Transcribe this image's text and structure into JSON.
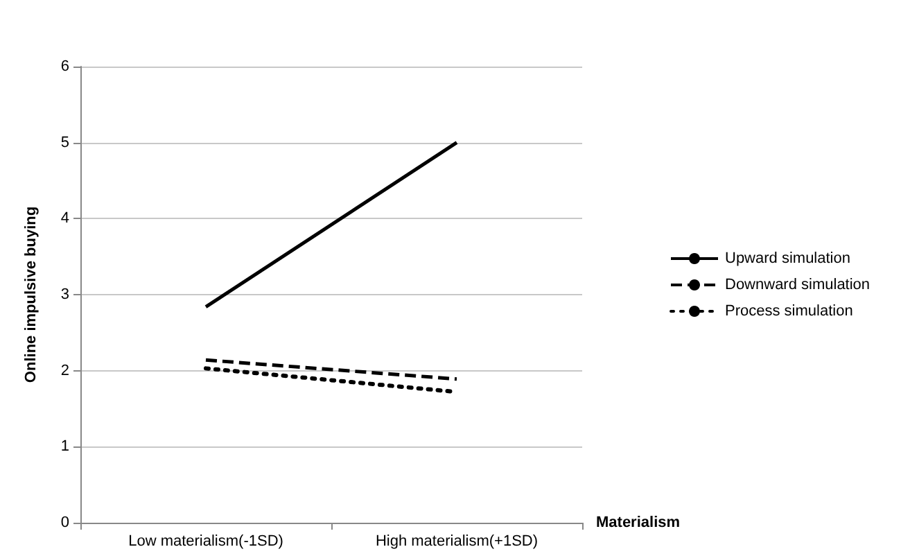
{
  "chart_data": {
    "type": "line",
    "xlabel": "Materialism",
    "ylabel": "Online impulsive buying",
    "categories": [
      "Low materialism(-1SD)",
      "High materialism(+1SD)"
    ],
    "series": [
      {
        "name": "Upward simulation",
        "color": "#000000",
        "values": [
          2.84,
          5.0
        ],
        "line_style": "solid"
      },
      {
        "name": "Downward simulation",
        "color": "#000000",
        "values": [
          2.14,
          1.89
        ],
        "line_style": "dashed"
      },
      {
        "name": "Process simulation",
        "color": "#000000",
        "values": [
          2.03,
          1.72
        ],
        "line_style": "dotted"
      }
    ],
    "ylim": [
      0,
      6
    ],
    "yticks": [
      0,
      1,
      2,
      3,
      4,
      5,
      6
    ],
    "grid": "y",
    "legend": "right",
    "marker": "none"
  }
}
